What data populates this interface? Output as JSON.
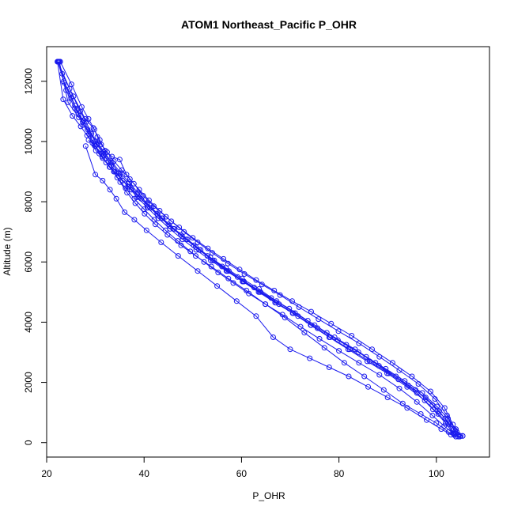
{
  "chart_data": {
    "type": "line",
    "title": "ATOM1 Northeast_Pacific P_OHR",
    "xlabel": "P_OHR",
    "ylabel": "Altitude (m)",
    "xlim": [
      20.0,
      110.9
    ],
    "ylim": [
      -480,
      13150
    ],
    "xticks": [
      20,
      40,
      60,
      80,
      100
    ],
    "yticks": [
      0,
      2000,
      4000,
      6000,
      8000,
      10000,
      12000
    ],
    "marker": "open-circle",
    "grid": false,
    "legend": "none",
    "colors": {
      "series": "#1a1aee",
      "axis": "#000000",
      "background": "#ffffff"
    },
    "series": [
      {
        "x": [
          22.3,
          23.5,
          24.9,
          25.8,
          26.5,
          27.6,
          28.9,
          29.7,
          30.8,
          32.2,
          33.9,
          35.6,
          37.4,
          39.4,
          41.5,
          43.8,
          46.2,
          48.9,
          51.6,
          54.4,
          57.4,
          60.5,
          63.7,
          67.1,
          70.6,
          74.2,
          78.0,
          81.9,
          85.8,
          89.9,
          94.0,
          97.6,
          100.4,
          102.6,
          104.2,
          105.4
        ],
        "y": [
          12650,
          12000,
          11550,
          11200,
          10900,
          10550,
          10200,
          9900,
          9600,
          9300,
          9000,
          8700,
          8400,
          8100,
          7800,
          7450,
          7100,
          6750,
          6400,
          6050,
          5700,
          5350,
          5000,
          4650,
          4300,
          3900,
          3500,
          3100,
          2700,
          2300,
          1850,
          1400,
          950,
          600,
          350,
          220
        ]
      },
      {
        "x": [
          22.4,
          23.6,
          25.0,
          26.2,
          27.4,
          28.7,
          30.0,
          31.4,
          32.9,
          34.5,
          36.2,
          38.0,
          40.0,
          42.1,
          44.4,
          46.9,
          49.5,
          52.3,
          55.2,
          58.3,
          61.5,
          64.9,
          68.4,
          72.1,
          76.0,
          80.0,
          84.1,
          88.3,
          92.4,
          96.0,
          99.2,
          101.6,
          103.5,
          104.8
        ],
        "y": [
          12650,
          11950,
          11450,
          11050,
          10650,
          10250,
          9850,
          9500,
          9150,
          8800,
          8450,
          8100,
          7750,
          7400,
          7050,
          6700,
          6350,
          6000,
          5650,
          5300,
          4950,
          4600,
          4250,
          3850,
          3450,
          3050,
          2650,
          2250,
          1800,
          1350,
          900,
          550,
          300,
          200
        ]
      },
      {
        "x": [
          22.2,
          23.4,
          25.3,
          27.0,
          28.3,
          29.4,
          30.1,
          31.5,
          33.0,
          34.8,
          36.9,
          39.0,
          41.2,
          43.6,
          46.0,
          48.6,
          51.3,
          54.1,
          57.1,
          60.2,
          63.5,
          66.9,
          70.5,
          74.3,
          78.2,
          82.2,
          86.3,
          90.2,
          94.2,
          97.8,
          100.6,
          102.4,
          103.7
        ],
        "y": [
          12650,
          11400,
          10850,
          10500,
          10200,
          9950,
          9700,
          9450,
          9150,
          8850,
          8500,
          8150,
          7800,
          7450,
          7100,
          6750,
          6400,
          6050,
          5700,
          5350,
          5000,
          4650,
          4300,
          3900,
          3500,
          3100,
          2700,
          2300,
          1900,
          1500,
          1050,
          650,
          250
        ]
      },
      {
        "x": [
          22.5,
          24.0,
          25.8,
          27.5,
          29.0,
          30.5,
          32.0,
          33.5,
          35.2,
          36.9,
          38.7,
          40.6,
          42.7,
          45.0,
          47.5,
          50.2,
          53.0,
          56.0,
          59.2,
          62.6,
          66.1,
          69.8,
          73.6,
          77.5,
          81.5,
          85.6,
          89.6,
          93.5,
          97.1,
          100.1,
          102.4,
          104.0,
          105.0
        ],
        "y": [
          12650,
          11700,
          11100,
          10700,
          10300,
          9950,
          9600,
          9300,
          8950,
          8650,
          8300,
          7950,
          7600,
          7250,
          6900,
          6550,
          6200,
          5850,
          5500,
          5150,
          4800,
          4450,
          4050,
          3650,
          3250,
          2850,
          2450,
          2050,
          1650,
          1200,
          800,
          450,
          220
        ]
      },
      {
        "x": [
          22.6,
          24.4,
          26.6,
          28.4,
          30.0,
          31.6,
          33.2,
          34.9,
          36.7,
          38.6,
          40.6,
          42.8,
          45.2,
          47.8,
          50.6,
          53.6,
          56.8,
          60.1,
          63.6,
          67.2,
          71.0,
          75.0,
          79.1,
          83.3,
          87.5,
          91.7,
          95.7,
          99.2,
          101.8,
          103.6,
          104.6
        ],
        "y": [
          12650,
          11300,
          10800,
          10400,
          10000,
          9650,
          9300,
          8950,
          8600,
          8250,
          7900,
          7550,
          7200,
          6850,
          6500,
          6150,
          5800,
          5450,
          5100,
          4700,
          4300,
          3900,
          3500,
          3100,
          2650,
          2200,
          1750,
          1250,
          800,
          450,
          250
        ]
      },
      {
        "x": [
          23.2,
          25.5,
          27.9,
          29.6,
          30.9,
          32.0,
          33.4,
          35.0,
          36.4,
          37.9,
          39.8,
          42.0,
          44.5,
          47.2,
          50.0,
          53.1,
          56.3,
          59.6,
          63.0,
          66.7,
          70.4,
          74.3,
          78.4,
          82.6,
          86.8,
          91.0,
          95.0,
          98.8,
          101.7,
          103.4
        ],
        "y": [
          12250,
          11500,
          10750,
          10450,
          10050,
          9700,
          9500,
          9400,
          8900,
          8600,
          8200,
          7850,
          7500,
          7150,
          6800,
          6450,
          6100,
          5750,
          5400,
          5050,
          4700,
          4350,
          3950,
          3550,
          3100,
          2650,
          2200,
          1700,
          1150,
          600
        ]
      },
      {
        "x": [
          22.8,
          25.1,
          27.2,
          28.6,
          29.8,
          30.4,
          31.2,
          32.4,
          33.8,
          35.4,
          37.1,
          39.0,
          41.0,
          43.2,
          45.6,
          48.2,
          51.0,
          54.0,
          57.2,
          60.6,
          64.2,
          67.9,
          71.8,
          75.8,
          79.9,
          84.1,
          88.3,
          92.4,
          96.3,
          99.7,
          102.2,
          103.9
        ],
        "y": [
          12650,
          11900,
          11150,
          10750,
          10400,
          10150,
          9900,
          9650,
          9350,
          9050,
          8750,
          8400,
          8050,
          7700,
          7350,
          7000,
          6650,
          6300,
          5950,
          5600,
          5250,
          4900,
          4500,
          4100,
          3700,
          3300,
          2850,
          2400,
          1950,
          1450,
          900,
          400
        ]
      },
      {
        "x": [
          22.3,
          24.7,
          26.9,
          28.1,
          29.2,
          30.3,
          31.8,
          33.3,
          34.9,
          36.7,
          38.6,
          40.7,
          42.9,
          45.3,
          47.9,
          50.7,
          53.7,
          56.9,
          60.3,
          63.9,
          67.7,
          71.6,
          75.6,
          79.8,
          84.0,
          88.2,
          92.2,
          96.0,
          99.3,
          101.9,
          103.6
        ],
        "y": [
          12650,
          11750,
          11000,
          10650,
          10250,
          9900,
          9550,
          9200,
          8850,
          8500,
          8150,
          7800,
          7450,
          7100,
          6750,
          6400,
          6050,
          5700,
          5350,
          5000,
          4600,
          4200,
          3800,
          3400,
          3000,
          2550,
          2100,
          1650,
          1100,
          650,
          280
        ]
      },
      {
        "x": [
          28.0,
          30.0,
          31.5,
          33.0,
          34.3,
          36.0,
          38.0,
          40.5,
          43.5,
          47.0,
          51.0,
          55.0,
          59.0,
          63.0,
          66.5,
          70.0,
          74.0,
          78.0,
          82.0,
          86.0,
          90.0,
          94.0,
          98.0,
          101.0,
          103.0,
          104.5,
          105.4
        ],
        "y": [
          9850,
          8900,
          8700,
          8400,
          8100,
          7650,
          7400,
          7050,
          6650,
          6200,
          5700,
          5200,
          4700,
          4200,
          3500,
          3100,
          2800,
          2500,
          2200,
          1850,
          1500,
          1150,
          750,
          450,
          260,
          200,
          220
        ]
      },
      {
        "x": [
          28.6,
          29.9,
          31.4,
          32.7,
          33.8,
          35.1,
          36.5,
          38.2,
          40.1,
          42.3,
          44.8,
          47.6,
          50.6,
          53.8,
          57.3,
          61.0,
          64.9,
          68.9,
          72.9,
          77.0,
          81.1,
          85.2,
          89.2,
          93.1,
          96.8,
          100.0,
          102.5,
          104.0
        ],
        "y": [
          10050,
          9850,
          9600,
          9350,
          9000,
          8650,
          8300,
          7950,
          7600,
          7250,
          6900,
          6550,
          6200,
          5850,
          5450,
          5050,
          4600,
          4150,
          3650,
          3150,
          2650,
          2200,
          1750,
          1300,
          950,
          650,
          350,
          200
        ]
      }
    ]
  }
}
